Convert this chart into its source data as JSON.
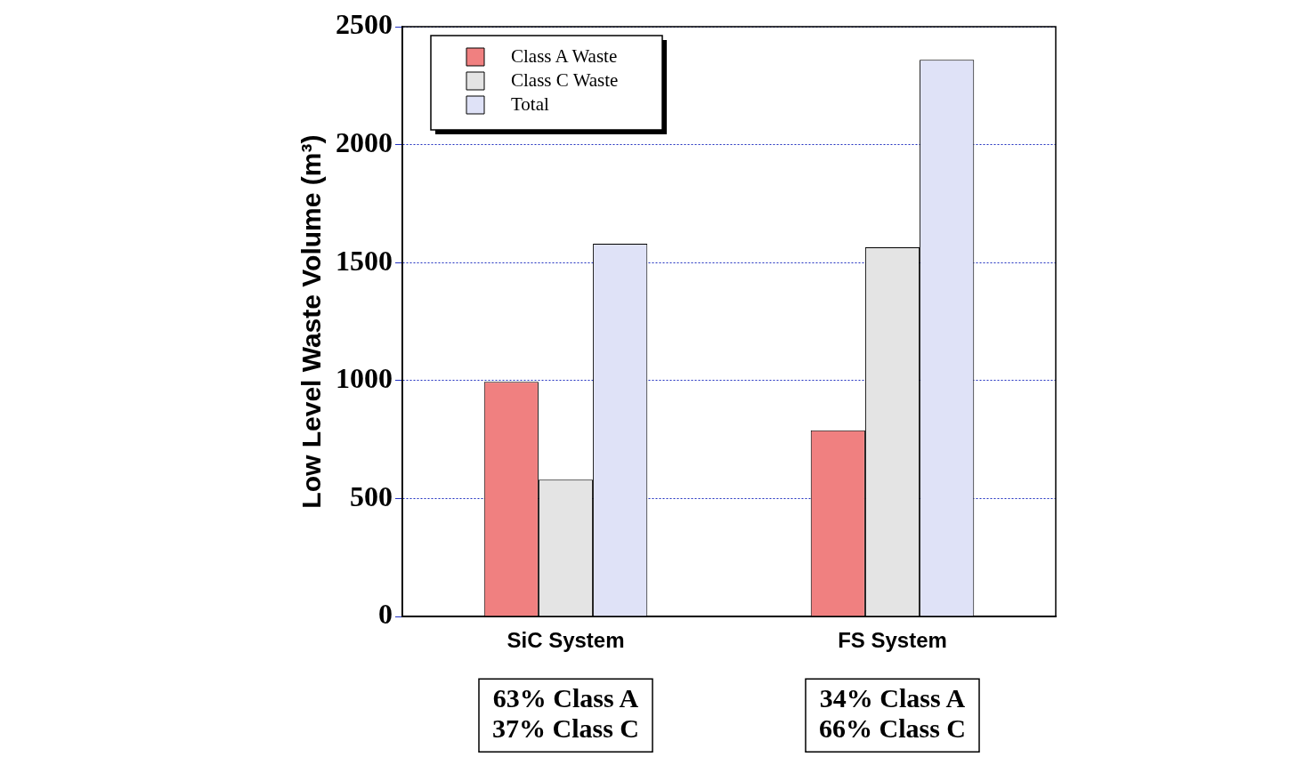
{
  "chart_data": {
    "type": "bar",
    "ylabel": "Low Level Waste Volume (m³)",
    "categories": [
      "SiC System",
      "FS System"
    ],
    "series": [
      {
        "name": "Class A Waste",
        "color": "#f08080",
        "values": [
          995,
          790
        ]
      },
      {
        "name": "Class C Waste",
        "color": "#e4e4e4",
        "values": [
          580,
          1565
        ]
      },
      {
        "name": "Total",
        "color": "#dfe2f7",
        "values": [
          1580,
          2360
        ]
      }
    ],
    "ylim": [
      0,
      2500
    ],
    "yticks": [
      0,
      500,
      1000,
      1500,
      2000,
      2500
    ],
    "grid": "y",
    "legend": "top left",
    "annotations": [
      "63% Class A\n37% Class C",
      "34% Class A\n66% Class C"
    ]
  }
}
